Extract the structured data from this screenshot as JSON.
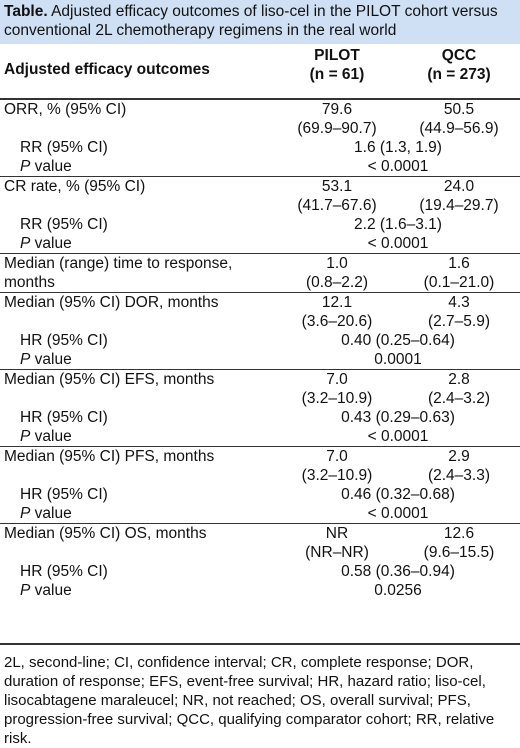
{
  "caption": {
    "bold": "Table.",
    "text": " Adjusted efficacy outcomes of liso-cel in the PILOT cohort versus conventional 2L chemotherapy regimens in the real world"
  },
  "header": {
    "label": "Adjusted efficacy outcomes",
    "col1_name": "PILOT",
    "col1_n": "(n = 61)",
    "col2_name": "QCC",
    "col2_n": "(n = 273)"
  },
  "rows": [
    {
      "label": "ORR, % (95% CI)",
      "pilot": "79.6",
      "pilot_ci": "(69.9–90.7)",
      "qcc": "50.5",
      "qcc_ci": "(44.9–56.9)",
      "stat_label": "RR (95% CI)",
      "stat_value": "1.6 (1.3, 1.9)",
      "p_label": "P",
      "p_suffix": " value",
      "p_value": "< 0.0001"
    },
    {
      "label": "CR rate, % (95% CI)",
      "pilot": "53.1",
      "pilot_ci": "(41.7–67.6)",
      "qcc": "24.0",
      "qcc_ci": "(19.4–29.7)",
      "stat_label": "RR (95% CI)",
      "stat_value": "2.2 (1.6–3.1)",
      "p_label": "P",
      "p_suffix": " value",
      "p_value": "< 0.0001"
    },
    {
      "label": "Median (range) time to response,",
      "label2": "months",
      "pilot": "1.0",
      "pilot_ci": "(0.8–2.2)",
      "qcc": "1.6",
      "qcc_ci": "(0.1–21.0)"
    },
    {
      "label": "Median (95% CI) DOR, months",
      "pilot": "12.1",
      "pilot_ci": "(3.6–20.6)",
      "qcc": "4.3",
      "qcc_ci": "(2.7–5.9)",
      "stat_label": "HR (95% CI)",
      "stat_value": "0.40 (0.25–0.64)",
      "p_label": "P",
      "p_suffix": " value",
      "p_value": "0.0001"
    },
    {
      "label": "Median (95% CI) EFS, months",
      "pilot": "7.0",
      "pilot_ci": "(3.2–10.9)",
      "qcc": "2.8",
      "qcc_ci": "(2.4–3.2)",
      "stat_label": "HR (95% CI)",
      "stat_value": "0.43 (0.29–0.63)",
      "p_label": "P",
      "p_suffix": " value",
      "p_value": "< 0.0001"
    },
    {
      "label": "Median (95% CI) PFS, months",
      "pilot": "7.0",
      "pilot_ci": "(3.2–10.9)",
      "qcc": "2.9",
      "qcc_ci": "(2.4–3.3)",
      "stat_label": "HR (95% CI)",
      "stat_value": "0.46 (0.32–0.68)",
      "p_label": "P",
      "p_suffix": " value",
      "p_value": "< 0.0001"
    },
    {
      "label": "Median (95% CI) OS, months",
      "pilot": "NR",
      "pilot_ci": "(NR–NR)",
      "qcc": "12.6",
      "qcc_ci": "(9.6–15.5)",
      "stat_label": "HR (95% CI)",
      "stat_value": "0.58 (0.36–0.94)",
      "p_label": "P",
      "p_suffix": " value",
      "p_value": "0.0256"
    }
  ],
  "footnote": "2L, second-line; CI, confidence interval; CR, complete response; DOR, duration of response; EFS, event-free survival; HR, hazard ratio; liso-cel, lisocabtagene maraleucel; NR, not reached; OS, overall survival; PFS, progression-free survival; QCC, qualifying comparator cohort; RR, relative risk.",
  "colors": {
    "caption_bg": "#cfe0f4",
    "rule": "#333333"
  }
}
